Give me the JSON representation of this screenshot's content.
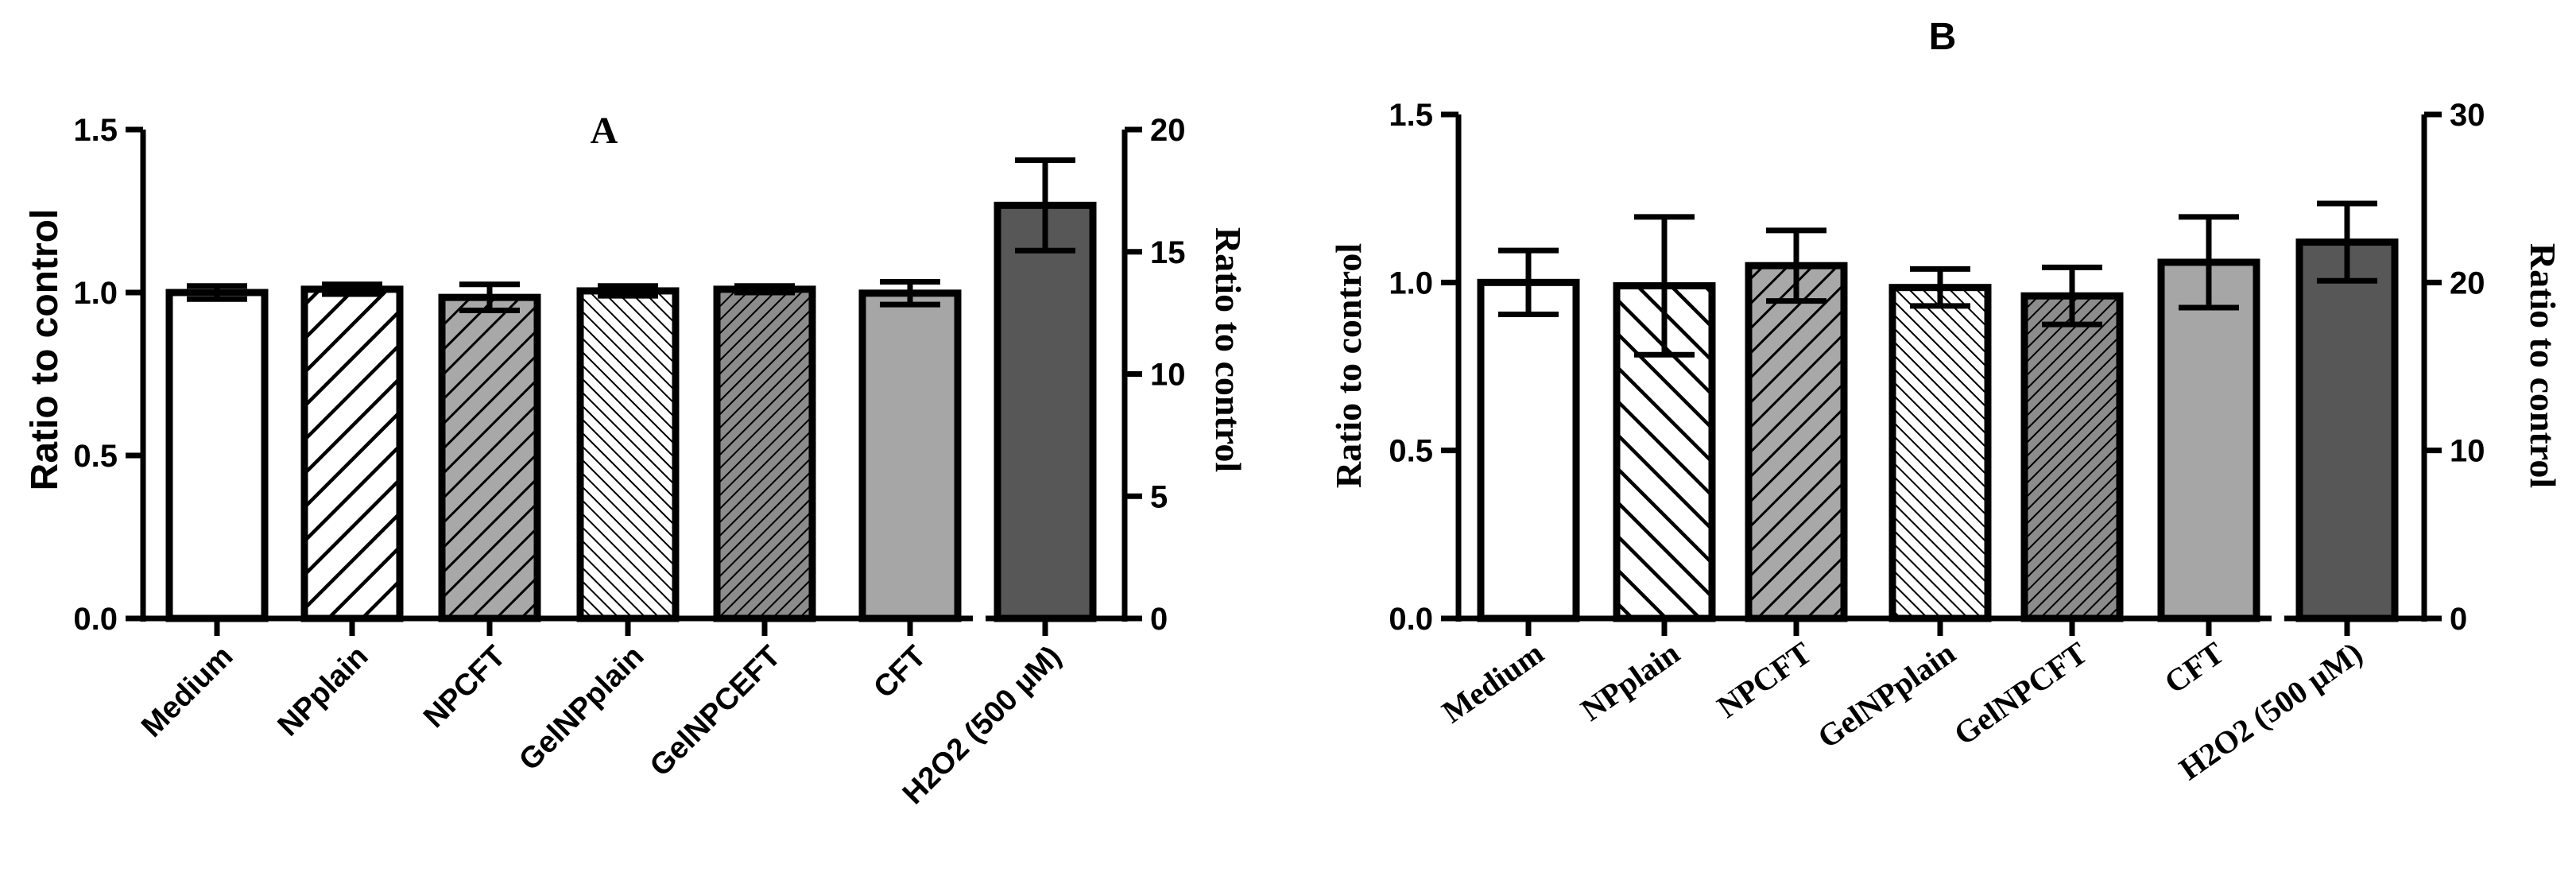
{
  "chart_data": [
    {
      "type": "bar",
      "panel_label": "A",
      "title": "",
      "categories": [
        "Medium",
        "NPplain",
        "NPCFT",
        "GelNPplain",
        "GelNPCEFT",
        "CFT",
        "H2O2 (500 µM)"
      ],
      "values": [
        1.0,
        1.01,
        0.985,
        1.005,
        1.01,
        0.998,
        16.9
      ],
      "errors": [
        0.02,
        0.015,
        0.04,
        0.015,
        0.01,
        0.035,
        1.85
      ],
      "value_axis": [
        "left",
        "left",
        "left",
        "left",
        "left",
        "left",
        "right"
      ],
      "ylabel": "Ratio to control",
      "ylabel_right": "Ratio to control",
      "ylim": [
        0,
        1.5
      ],
      "ylim_right": [
        0,
        20
      ],
      "yticks": [
        "0.0",
        "0.5",
        "1.0",
        "1.5"
      ],
      "yticks_right": [
        "0",
        "5",
        "10",
        "15",
        "20"
      ],
      "grid": false,
      "bar_styles": [
        {
          "fill": "#ffffff",
          "pattern": "none"
        },
        {
          "fill": "#ffffff",
          "pattern": "wide-diagonal"
        },
        {
          "fill": "#a8a8a8",
          "pattern": "diagonal"
        },
        {
          "fill": "#ffffff",
          "pattern": "fine-back-diagonal"
        },
        {
          "fill": "#8c8c8c",
          "pattern": "fine-diagonal"
        },
        {
          "fill": "#a6a6a6",
          "pattern": "none"
        },
        {
          "fill": "#575757",
          "pattern": "none"
        }
      ]
    },
    {
      "type": "bar",
      "panel_label": "B",
      "title": "",
      "categories": [
        "Medium",
        "NPplain",
        "NPCFT",
        "GelNPplain",
        "GelNPCFT",
        "CFT",
        "H2O2 (500 µM)"
      ],
      "values": [
        1.0,
        0.99,
        1.05,
        0.985,
        0.96,
        1.06,
        22.4
      ],
      "errors": [
        0.095,
        0.205,
        0.105,
        0.055,
        0.085,
        0.135,
        2.3
      ],
      "value_axis": [
        "left",
        "left",
        "left",
        "left",
        "left",
        "left",
        "right"
      ],
      "ylabel": "Ratio to control",
      "ylabel_right": "Ratio to control",
      "ylim": [
        0,
        1.5
      ],
      "ylim_right": [
        0,
        30
      ],
      "yticks": [
        "0.0",
        "0.5",
        "1.0",
        "1.5"
      ],
      "yticks_right": [
        "0",
        "10",
        "20",
        "30"
      ],
      "grid": false,
      "bar_styles": [
        {
          "fill": "#ffffff",
          "pattern": "none"
        },
        {
          "fill": "#ffffff",
          "pattern": "wide-back-diagonal"
        },
        {
          "fill": "#a8a8a8",
          "pattern": "diagonal"
        },
        {
          "fill": "#ffffff",
          "pattern": "fine-back-diagonal"
        },
        {
          "fill": "#8c8c8c",
          "pattern": "fine-diagonal"
        },
        {
          "fill": "#a6a6a6",
          "pattern": "none"
        },
        {
          "fill": "#575757",
          "pattern": "none"
        }
      ]
    }
  ]
}
